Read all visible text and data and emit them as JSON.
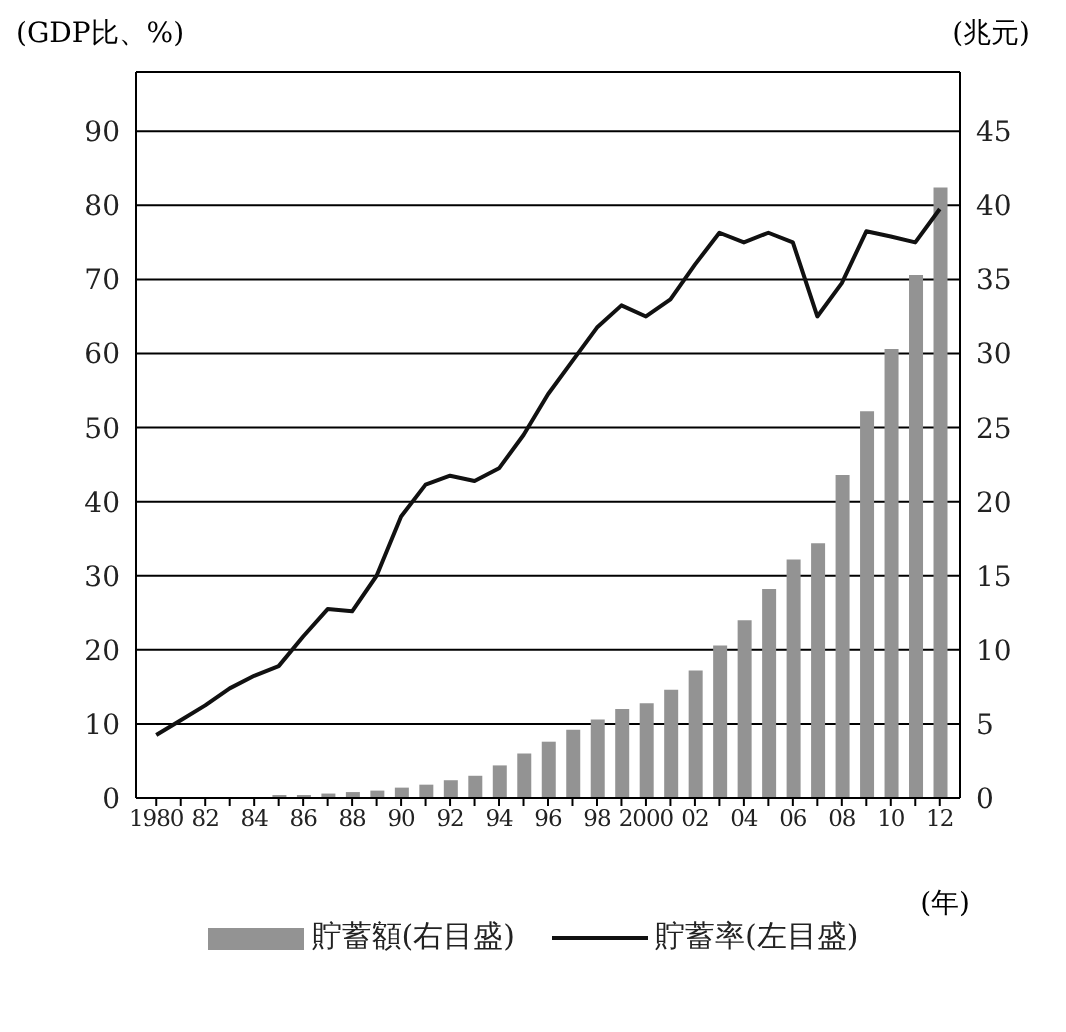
{
  "chart_data": {
    "type": "bar",
    "ylabel": "(GDP比、%)",
    "y2label": "(兆元)",
    "xlabel": "(年)",
    "categories": [
      "1980",
      null,
      "82",
      null,
      "84",
      null,
      "86",
      null,
      "88",
      null,
      "90",
      null,
      "92",
      null,
      "94",
      null,
      "96",
      null,
      "98",
      null,
      "2000",
      null,
      "02",
      null,
      "04",
      null,
      "06",
      null,
      "08",
      null,
      "10",
      null,
      "12"
    ],
    "series": [
      {
        "name": "貯蓄額(右目盛)",
        "axis": "y2",
        "color": "#939393",
        "values": [
          null,
          null,
          null,
          null,
          null,
          0.2,
          0.2,
          0.3,
          0.4,
          0.5,
          0.7,
          0.9,
          1.2,
          1.5,
          2.2,
          3.0,
          3.8,
          4.6,
          5.3,
          6.0,
          6.4,
          7.3,
          8.6,
          10.3,
          12.0,
          14.1,
          16.1,
          17.2,
          21.8,
          26.1,
          30.3,
          35.3,
          41.2
        ]
      },
      {
        "name": "貯蓄率(左目盛)",
        "type": "line",
        "color": "#111111",
        "values": [
          8.5,
          10.5,
          12.5,
          14.8,
          16.5,
          17.8,
          21.8,
          25.5,
          25.2,
          30,
          38,
          42.3,
          43.5,
          42.8,
          44.5,
          49,
          54.5,
          59,
          63.5,
          66.5,
          65,
          67.3,
          72,
          76.3,
          75,
          76.3,
          75,
          65,
          69.5,
          76.5,
          75.8,
          75,
          79.5
        ]
      }
    ],
    "ylim": [
      0,
      98
    ],
    "yticks": [
      0,
      10,
      20,
      30,
      40,
      50,
      60,
      70,
      80,
      90
    ],
    "y2lim": [
      0,
      49
    ],
    "y2ticks": [
      0,
      5,
      10,
      15,
      20,
      25,
      30,
      35,
      40,
      45
    ],
    "grid": "y",
    "legend": "bottom",
    "marker": "none",
    "line_style": "solid"
  }
}
